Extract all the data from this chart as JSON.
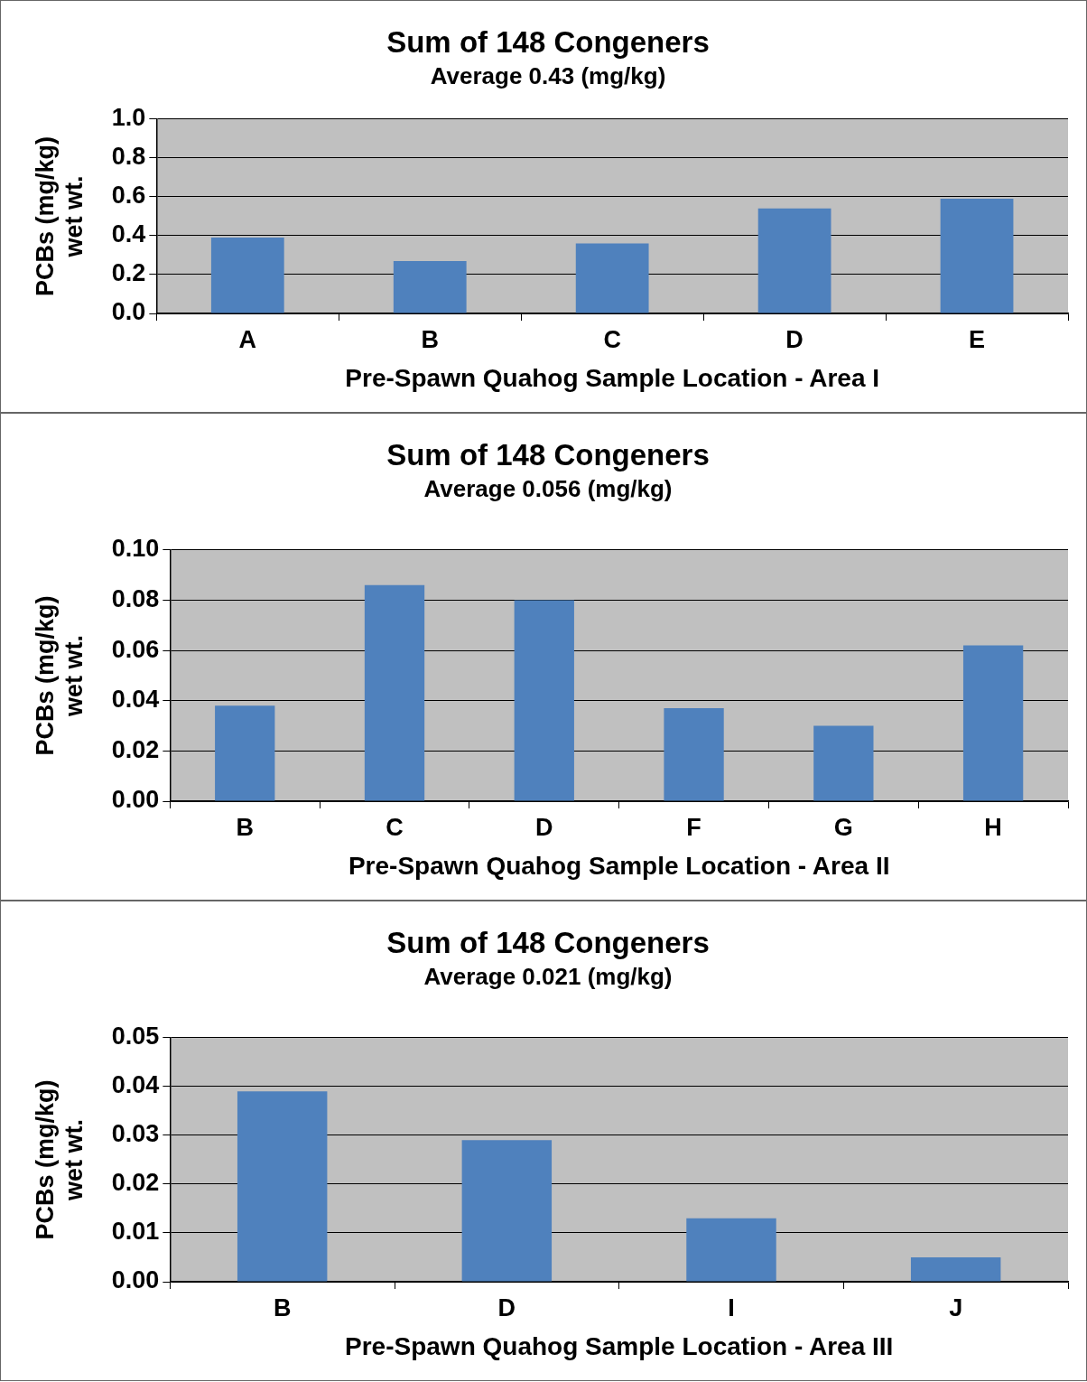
{
  "chart_data": [
    {
      "type": "bar",
      "title": "Sum of 148 Congeners",
      "subtitle": "Average 0.43 (mg/kg)",
      "xlabel": "Pre-Spawn Quahog Sample Location - Area I",
      "ylabel": "PCBs (mg/kg)\nwet wt.",
      "categories": [
        "A",
        "B",
        "C",
        "D",
        "E"
      ],
      "values": [
        0.39,
        0.27,
        0.36,
        0.54,
        0.59
      ],
      "color": "#4f81bd",
      "ylim": [
        0,
        1.0
      ],
      "yticks": [
        {
          "value": 0,
          "label": "0.0"
        },
        0.2,
        0.4,
        0.6,
        0.8,
        {
          "value": 1.0,
          "label": "1.0"
        }
      ],
      "grid": "y",
      "legend": false
    },
    {
      "type": "bar",
      "title": "Sum of 148 Congeners",
      "subtitle": "Average 0.056 (mg/kg)",
      "xlabel": "Pre-Spawn Quahog Sample Location - Area II",
      "ylabel": "PCBs (mg/kg)\nwet wt.",
      "categories": [
        "B",
        "C",
        "D",
        "F",
        "G",
        "H"
      ],
      "values": [
        0.038,
        0.086,
        0.08,
        0.037,
        0.03,
        0.062
      ],
      "color": "#4f81bd",
      "ylim": [
        0,
        0.1
      ],
      "yticks": [
        {
          "value": 0,
          "label": "0.00"
        },
        {
          "value": 0.02,
          "label": "0.02"
        },
        {
          "value": 0.04,
          "label": "0.04"
        },
        {
          "value": 0.06,
          "label": "0.06"
        },
        {
          "value": 0.08,
          "label": "0.08"
        },
        {
          "value": 0.1,
          "label": "0.10"
        }
      ],
      "grid": "y",
      "legend": false
    },
    {
      "type": "bar",
      "title": "Sum of 148 Congeners",
      "subtitle": "Average 0.021 (mg/kg)",
      "xlabel": "Pre-Spawn Quahog Sample Location - Area III",
      "ylabel": "PCBs (mg/kg)\nwet wt.",
      "categories": [
        "B",
        "D",
        "I",
        "J"
      ],
      "values": [
        0.039,
        0.029,
        0.013,
        0.005
      ],
      "color": "#4f81bd",
      "ylim": [
        0,
        0.05
      ],
      "yticks": [
        {
          "value": 0,
          "label": "0.00"
        },
        {
          "value": 0.01,
          "label": "0.01"
        },
        {
          "value": 0.02,
          "label": "0.02"
        },
        {
          "value": 0.03,
          "label": "0.03"
        },
        {
          "value": 0.04,
          "label": "0.04"
        },
        {
          "value": 0.05,
          "label": "0.05"
        }
      ],
      "grid": "y",
      "legend": false
    }
  ]
}
